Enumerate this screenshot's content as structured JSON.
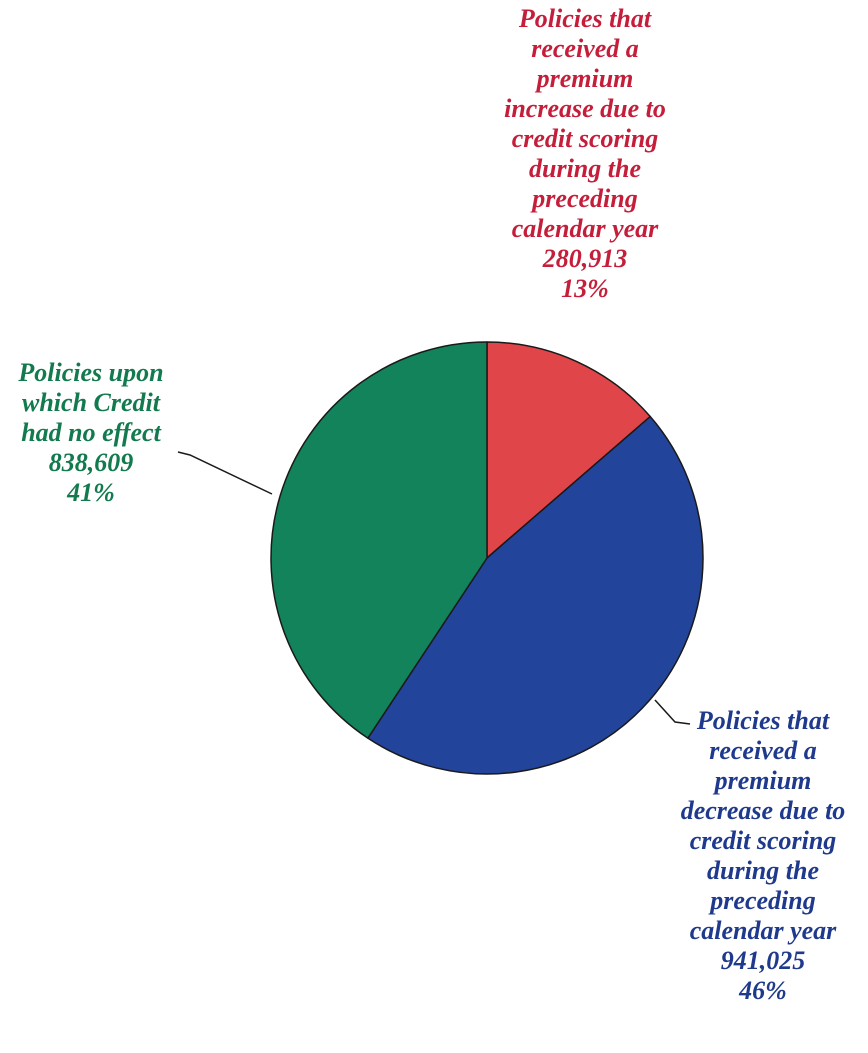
{
  "chart_data": {
    "type": "pie",
    "slices": [
      {
        "key": "increase",
        "label_lines": [
          "Policies that",
          "received a",
          "premium",
          "increase due to",
          "credit scoring",
          "during the",
          "preceding",
          "calendar year"
        ],
        "count_label": "280,913",
        "percent_label": "13%",
        "value": 280913,
        "color": "#e0454a",
        "text_color": "#c41e3a"
      },
      {
        "key": "decrease",
        "label_lines": [
          "Policies that",
          "received a",
          "premium",
          "decrease due to",
          "credit scoring",
          "during the",
          "preceding",
          "calendar year"
        ],
        "count_label": "941,025",
        "percent_label": "46%",
        "value": 941025,
        "color": "#22449a",
        "text_color": "#1f3a8c"
      },
      {
        "key": "noeffect",
        "label_lines": [
          "Policies upon",
          "which Credit",
          "had no effect"
        ],
        "count_label": "838,609",
        "percent_label": "41%",
        "value": 838609,
        "color": "#12835a",
        "text_color": "#127a4e"
      }
    ],
    "start_angle": "12 o'clock",
    "direction": "clockwise",
    "legend": "none"
  }
}
